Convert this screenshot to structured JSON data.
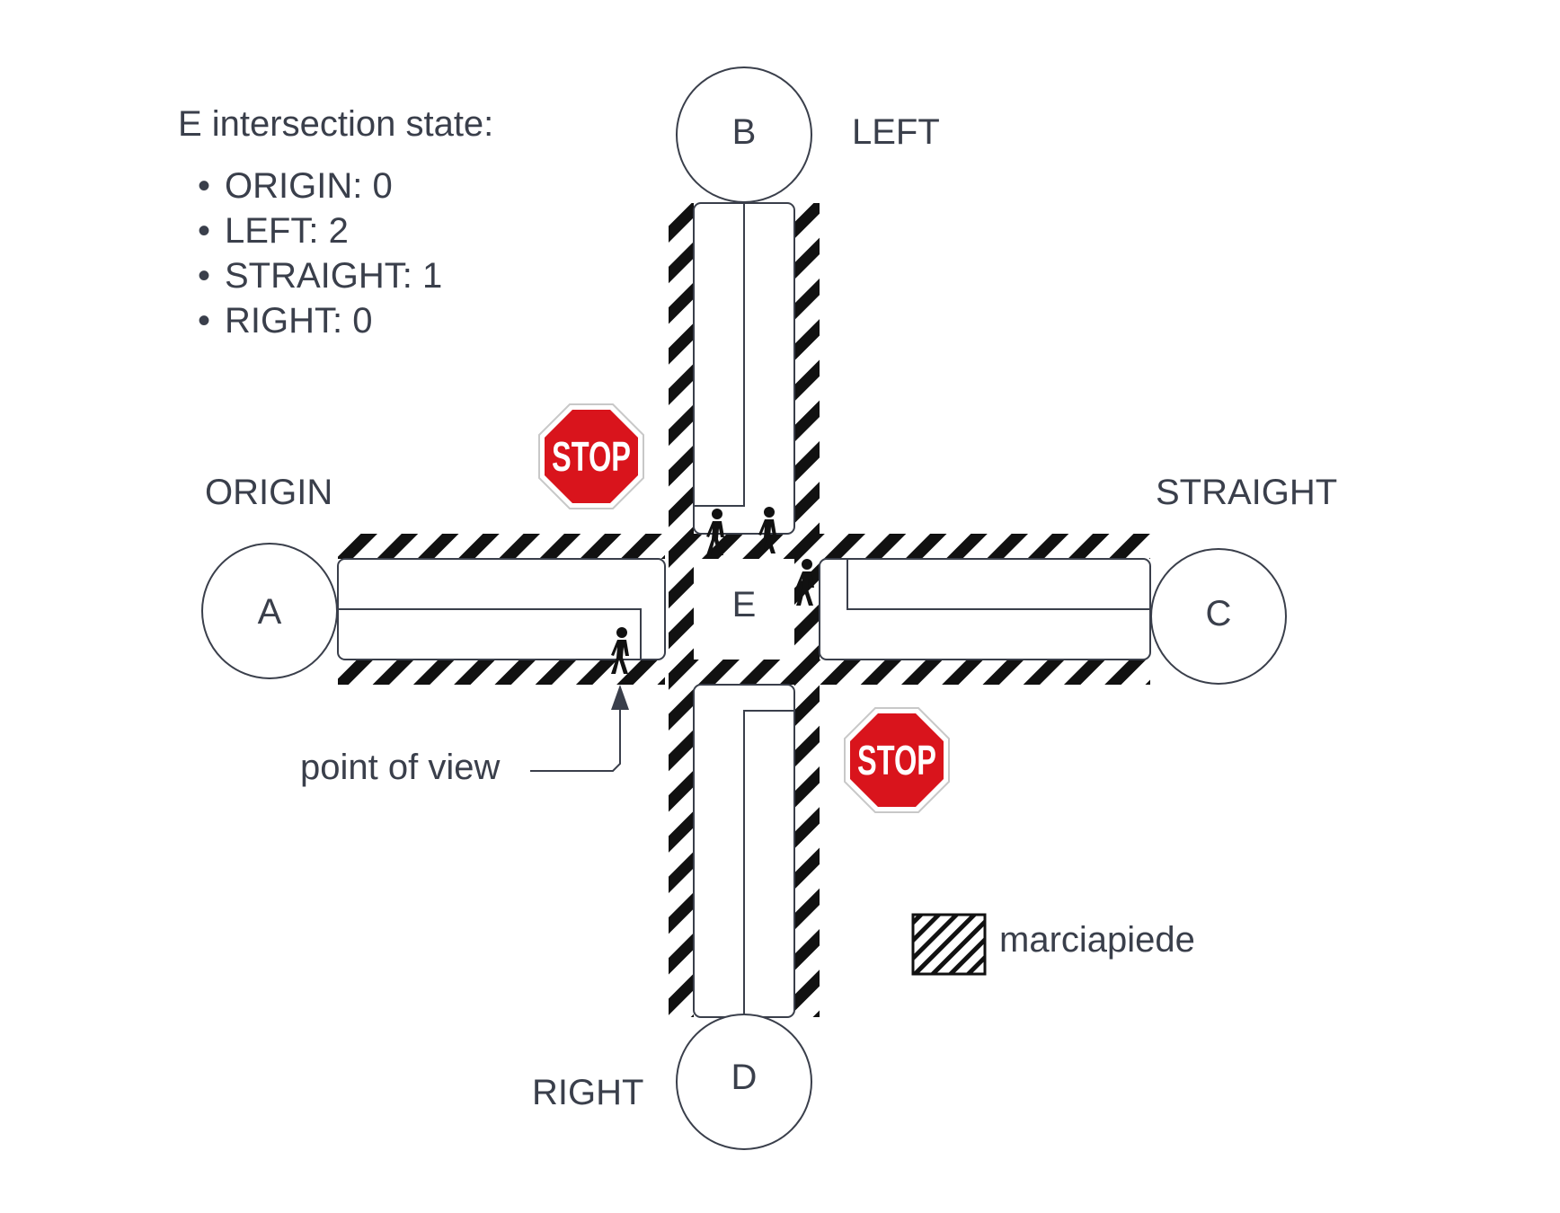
{
  "intersection_state": {
    "title": "E intersection state:",
    "items": [
      {
        "key": "ORIGIN",
        "value": 0,
        "text": "ORIGIN: 0"
      },
      {
        "key": "LEFT",
        "value": 2,
        "text": "LEFT: 2"
      },
      {
        "key": "STRAIGHT",
        "value": 1,
        "text": "STRAIGHT: 1"
      },
      {
        "key": "RIGHT",
        "value": 0,
        "text": "RIGHT: 0"
      }
    ]
  },
  "nodes": {
    "A": "A",
    "B": "B",
    "C": "C",
    "D": "D",
    "E": "E"
  },
  "direction_labels": {
    "origin": "ORIGIN",
    "left": "LEFT",
    "straight": "STRAIGHT",
    "right": "RIGHT"
  },
  "annotations": {
    "point_of_view": "point of view"
  },
  "stop_signs": {
    "text": "STOP",
    "color": "#d9141c"
  },
  "legend": {
    "sidewalk_label": "marciapiede"
  },
  "colors": {
    "text": "#3a3f4b",
    "stroke": "#3a3f4b",
    "hatch": "#111111",
    "pedestrian": "#111111"
  },
  "icons": [
    "pedestrian-icon",
    "stop-sign-icon",
    "arrow-up-icon"
  ]
}
